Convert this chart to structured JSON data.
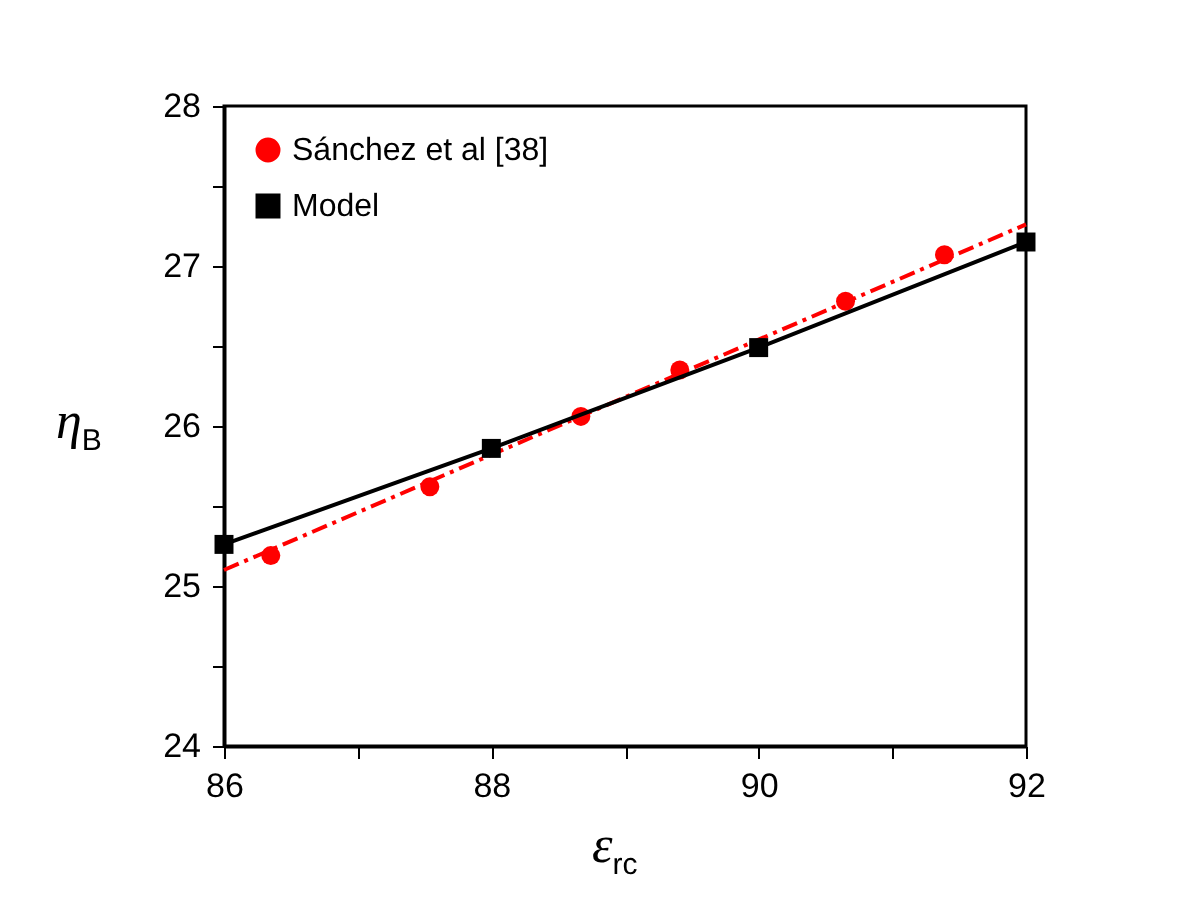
{
  "chart_data": {
    "type": "line",
    "xlabel": "ε$_{rc}$",
    "ylabel": "η$_{B}$",
    "xlim": [
      86,
      92
    ],
    "xticks": [
      {
        "value": 86,
        "label": "86"
      },
      {
        "value": 87,
        "label": null
      },
      {
        "value": 88,
        "label": "88"
      },
      {
        "value": 89,
        "label": null
      },
      {
        "value": 90,
        "label": "90"
      },
      {
        "value": 91,
        "label": null
      },
      {
        "value": 92,
        "label": "92"
      }
    ],
    "ylim": [
      24,
      28
    ],
    "yticks": [
      {
        "value": 24,
        "label": "24"
      },
      {
        "value": 24.5,
        "label": null
      },
      {
        "value": 25,
        "label": "25"
      },
      {
        "value": 25.5,
        "label": null
      },
      {
        "value": 26,
        "label": "26"
      },
      {
        "value": 26.5,
        "label": null
      },
      {
        "value": 27,
        "label": "27"
      },
      {
        "value": 27.5,
        "label": null
      },
      {
        "value": 28,
        "label": "28"
      }
    ],
    "grid": false,
    "legend": "top left",
    "series": [
      {
        "name": "Sánchez et al [38]",
        "type": "scatter",
        "color": "#ff0000",
        "marker": "circle",
        "x": [
          86.35,
          87.54,
          88.67,
          89.41,
          90.65,
          91.39
        ],
        "values": [
          25.19,
          25.62,
          26.06,
          26.35,
          26.78,
          27.07
        ]
      },
      {
        "type": "line",
        "color": "#ff0000",
        "line_style": "dashed",
        "marker": "none",
        "x": [
          86,
          92
        ],
        "values": [
          25.1,
          27.26
        ]
      },
      {
        "name": "Model",
        "type": "line",
        "color": "#000000",
        "line_style": "solid",
        "marker": "square",
        "x": [
          86,
          88,
          90,
          92
        ],
        "values": [
          25.26,
          25.86,
          26.49,
          27.15
        ]
      }
    ]
  }
}
